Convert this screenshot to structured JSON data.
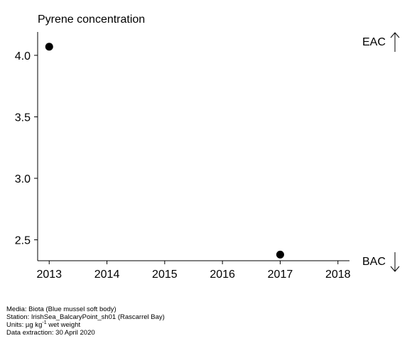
{
  "chart_data": {
    "type": "scatter",
    "title": "Pyrene concentration",
    "xlabel": "",
    "ylabel": "",
    "x_ticks": [
      "2013",
      "2014",
      "2015",
      "2016",
      "2017",
      "2018"
    ],
    "y_ticks": [
      "2.5",
      "3.0",
      "3.5",
      "4.0"
    ],
    "xlim": [
      2012.8,
      2018.2
    ],
    "ylim": [
      2.33,
      4.19
    ],
    "grid": false,
    "points": [
      {
        "x": 2013,
        "y": 4.07
      },
      {
        "x": 2017,
        "y": 2.38
      }
    ],
    "marker_color": "#000000",
    "thresholds": {
      "upper": "EAC",
      "lower": "BAC"
    }
  },
  "footer": {
    "media": "Media: Biota (Blue mussel soft body)",
    "station": "Station: IrishSea_BalcaryPoint_sh01 (Rascarrel Bay)",
    "units_prefix": "Units:  µg kg",
    "units_sup": "-1",
    "units_suffix": " wet weight",
    "extraction": "Data extraction: 30 April 2020"
  }
}
